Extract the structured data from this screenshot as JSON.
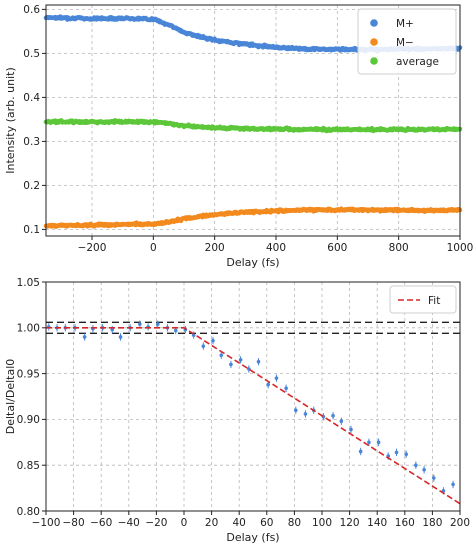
{
  "chart_data": [
    {
      "type": "scatter",
      "xlabel": "Delay (fs)",
      "ylabel": "Intensity (arb. unit)",
      "xlim": [
        -350,
        1000
      ],
      "ylim": [
        0.085,
        0.61
      ],
      "xticks": [
        -200,
        0,
        200,
        400,
        600,
        800,
        1000
      ],
      "xtick_labels": [
        "−200",
        "0",
        "200",
        "400",
        "600",
        "800",
        "1000"
      ],
      "yticks": [
        0.1,
        0.2,
        0.3,
        0.4,
        0.5,
        0.6
      ],
      "ytick_labels": [
        "0.1",
        "0.2",
        "0.3",
        "0.4",
        "0.5",
        "0.6"
      ],
      "grid": true,
      "legend": "top-right",
      "series": [
        {
          "name": "M+",
          "color": "#4a86d8",
          "x": [
            -350,
            -200,
            -100,
            0,
            50,
            100,
            150,
            200,
            300,
            400,
            500,
            600,
            700,
            800,
            900,
            1000
          ],
          "y": [
            0.582,
            0.579,
            0.58,
            0.578,
            0.565,
            0.548,
            0.538,
            0.53,
            0.521,
            0.514,
            0.51,
            0.509,
            0.509,
            0.51,
            0.51,
            0.511
          ]
        },
        {
          "name": "M−",
          "color": "#f28a1e",
          "x": [
            -350,
            -200,
            -100,
            0,
            50,
            100,
            150,
            200,
            300,
            400,
            500,
            600,
            700,
            800,
            900,
            1000
          ],
          "y": [
            0.108,
            0.11,
            0.111,
            0.112,
            0.117,
            0.124,
            0.129,
            0.134,
            0.139,
            0.142,
            0.144,
            0.145,
            0.144,
            0.144,
            0.143,
            0.144
          ]
        },
        {
          "name": "average",
          "color": "#5dc73a",
          "x": [
            -350,
            -200,
            -100,
            0,
            50,
            100,
            150,
            200,
            300,
            400,
            500,
            600,
            700,
            800,
            900,
            1000
          ],
          "y": [
            0.345,
            0.344,
            0.345,
            0.344,
            0.341,
            0.336,
            0.333,
            0.331,
            0.329,
            0.328,
            0.327,
            0.327,
            0.327,
            0.327,
            0.327,
            0.327
          ]
        }
      ]
    },
    {
      "type": "scatter",
      "xlabel": "Delay (fs)",
      "ylabel": "Deltal/Deltal0",
      "xlim": [
        -100,
        200
      ],
      "ylim": [
        0.8,
        1.05
      ],
      "xticks": [
        -100,
        -80,
        -60,
        -40,
        -20,
        0,
        20,
        40,
        60,
        80,
        100,
        120,
        140,
        160,
        180,
        200
      ],
      "xtick_labels": [
        "−100",
        "−80",
        "−60",
        "−40",
        "−20",
        "0",
        "20",
        "40",
        "60",
        "80",
        "100",
        "120",
        "140",
        "160",
        "180",
        "200"
      ],
      "yticks": [
        0.8,
        0.85,
        0.9,
        0.95,
        1.0,
        1.05
      ],
      "ytick_labels": [
        "0.80",
        "0.85",
        "0.90",
        "0.95",
        "1.00",
        "1.05"
      ],
      "grid": true,
      "legend": "top-right",
      "reference_lines_y": [
        1.006,
        0.994
      ],
      "series": [
        {
          "name": "",
          "color": "#4a86d8",
          "x": [
            -98,
            -92,
            -86,
            -79,
            -72,
            -66,
            -59,
            -52,
            -46,
            -39,
            -32,
            -26,
            -19,
            -12,
            -6,
            1,
            7,
            14,
            21,
            27,
            34,
            41,
            47,
            54,
            61,
            67,
            74,
            81,
            88,
            94,
            101,
            108,
            114,
            121,
            128,
            134,
            141,
            148,
            154,
            161,
            168,
            174,
            181,
            188,
            195
          ],
          "y": [
            1.001,
            1.0,
            1.0,
            1.0,
            0.99,
            0.999,
            1.0,
            0.998,
            0.99,
            1.0,
            1.004,
            1.001,
            1.004,
            1.0,
            0.997,
            0.998,
            0.992,
            0.98,
            0.986,
            0.97,
            0.96,
            0.965,
            0.955,
            0.963,
            0.938,
            0.945,
            0.934,
            0.91,
            0.906,
            0.91,
            0.903,
            0.904,
            0.898,
            0.889,
            0.865,
            0.875,
            0.875,
            0.86,
            0.864,
            0.862,
            0.85,
            0.845,
            0.836,
            0.822,
            0.829
          ],
          "yerr": [
            0.004,
            0.004,
            0.004,
            0.004,
            0.004,
            0.004,
            0.004,
            0.004,
            0.004,
            0.004,
            0.004,
            0.004,
            0.004,
            0.004,
            0.004,
            0.004,
            0.004,
            0.004,
            0.004,
            0.004,
            0.004,
            0.004,
            0.004,
            0.004,
            0.004,
            0.004,
            0.004,
            0.004,
            0.004,
            0.004,
            0.004,
            0.004,
            0.004,
            0.004,
            0.004,
            0.004,
            0.004,
            0.004,
            0.004,
            0.004,
            0.004,
            0.004,
            0.004,
            0.004,
            0.004
          ]
        },
        {
          "name": "Fit",
          "type": "line",
          "style": "dashed",
          "color": "#d62728",
          "x": [
            -100,
            0,
            200
          ],
          "y": [
            1.0,
            1.0,
            0.808
          ]
        }
      ]
    }
  ]
}
